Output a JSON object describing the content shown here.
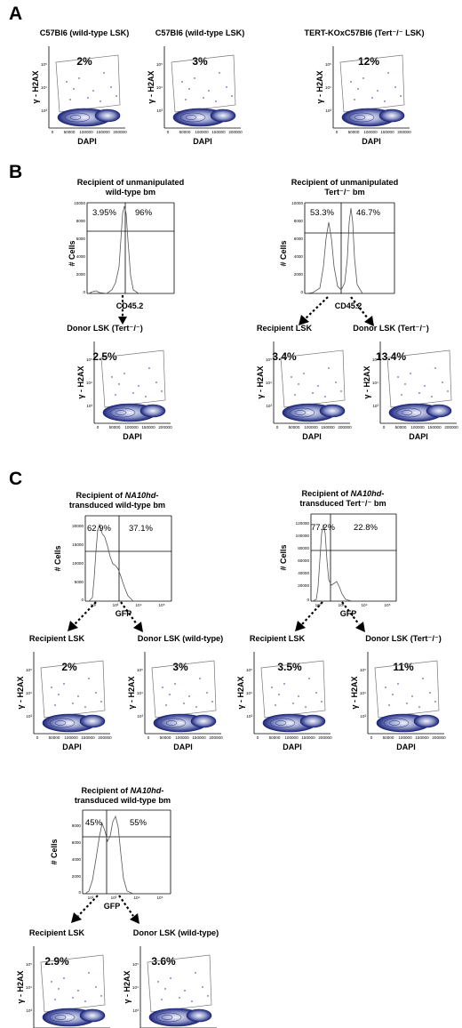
{
  "panels": {
    "A": {
      "letter": "A",
      "plots": [
        {
          "title": "C57Bl6 (wild-type LSK)",
          "pct": "2%"
        },
        {
          "title": "C57Bl6 (wild-type LSK)",
          "pct": "3%"
        },
        {
          "title": "TERT-KOxC57Bl6 (Tert⁻/⁻ LSK)",
          "pct": "12%"
        }
      ]
    },
    "B": {
      "letter": "B",
      "hist1": {
        "title1": "Recipient of unmanipulated",
        "title2": "wild-type bm",
        "left_pct": "3.95%",
        "right_pct": "96%",
        "xlabel": "CD45.2",
        "ylabel": "# Cells"
      },
      "hist2": {
        "title1": "Recipient of unmanipulated",
        "title2": "Tert⁻/⁻ bm",
        "left_pct": "53.3%",
        "right_pct": "46.7%",
        "xlabel": "CD45.2",
        "ylabel": "# Cells"
      },
      "plots": [
        {
          "title": "Donor LSK (Tert⁻/⁻)",
          "pct": "2.5%"
        },
        {
          "title": "Recipient LSK",
          "pct": "3.4%"
        },
        {
          "title": "Donor LSK (Tert⁻/⁻)",
          "pct": "13.4%"
        }
      ]
    },
    "C": {
      "letter": "C",
      "hist1": {
        "title1a": "Recipient of ",
        "title1b": "NA10hd-",
        "title2": "transduced wild-type bm",
        "left_pct": "62.9%",
        "right_pct": "37.1%",
        "xlabel": "GFP",
        "ylabel": "# Cells"
      },
      "hist2": {
        "title1a": "Recipient of ",
        "title1b": "NA10hd-",
        "title2": "transduced Tert⁻/⁻ bm",
        "left_pct": "77.2%",
        "right_pct": "22.8%",
        "xlabel": "GFP",
        "ylabel": "# Cells"
      },
      "hist3": {
        "title1a": "Recipient of ",
        "title1b": "NA10hd-",
        "title2": "transduced wild-type bm",
        "left_pct": "45%",
        "right_pct": "55%",
        "xlabel": "GFP",
        "ylabel": "# Cells"
      },
      "plots": [
        {
          "title": "Recipient LSK",
          "pct": "2%"
        },
        {
          "title": "Donor LSK (wild-type)",
          "pct": "3%"
        },
        {
          "title": "Recipient LSK",
          "pct": "3.5%"
        },
        {
          "title": "Donor LSK (Tert⁻/⁻)",
          "pct": "11%"
        },
        {
          "title": "Recipient LSK",
          "pct": "2.9%"
        },
        {
          "title": "Donor LSK (wild-type)",
          "pct": "3.6%"
        }
      ]
    }
  },
  "axes": {
    "dapi": "DAPI",
    "h2ax": "γ - H2AX",
    "dapi_ticks": [
      "0",
      "50000",
      "100000",
      "150000",
      "200000"
    ],
    "h2ax_ticks": [
      "10³",
      "10⁴",
      "10⁵"
    ],
    "hist_ticks_wt": [
      "10000",
      "8000",
      "6000",
      "4000",
      "2000",
      "0"
    ],
    "hist_ticks_tert": [
      "10000",
      "8000",
      "6000",
      "4000",
      "2000",
      "0"
    ],
    "hist_ticks_c1": [
      "20000",
      "15000",
      "10000",
      "5000",
      "0"
    ],
    "hist_ticks_c2": [
      "120000",
      "100000",
      "80000",
      "60000",
      "40000",
      "20000",
      "0"
    ],
    "hist_ticks_c3": [
      "8000",
      "6000",
      "4000",
      "2000",
      "0"
    ],
    "log_ticks": [
      "10²",
      "10³",
      "10⁴",
      "10⁵"
    ]
  }
}
